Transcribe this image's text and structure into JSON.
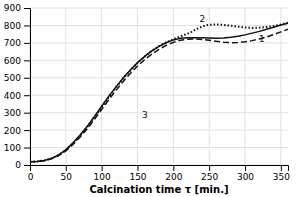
{
  "chart_data": {
    "type": "line",
    "xlabel": "Calcination time τ [min.]",
    "xlim": [
      0,
      360
    ],
    "ylim": [
      0,
      900
    ],
    "xticks": [
      0,
      50,
      100,
      150,
      200,
      250,
      300,
      350
    ],
    "yticks": [
      0,
      100,
      200,
      300,
      400,
      500,
      600,
      700,
      800,
      900
    ],
    "grid": true,
    "series": [
      {
        "color": "#111111",
        "line_style": "solid",
        "x": [
          0,
          10,
          20,
          30,
          40,
          50,
          60,
          70,
          80,
          90,
          100,
          110,
          120,
          130,
          140,
          150,
          160,
          170,
          180,
          190,
          200,
          210,
          220,
          230,
          240,
          250,
          260,
          270,
          280,
          290,
          300,
          310,
          320,
          330,
          340,
          350,
          360
        ],
        "values": [
          18,
          20,
          26,
          38,
          58,
          87,
          127,
          172,
          222,
          278,
          337,
          394,
          448,
          499,
          545,
          587,
          623,
          654,
          680,
          701,
          717,
          726,
          730,
          730,
          729,
          728,
          727,
          728,
          732,
          738,
          746,
          756,
          766,
          778,
          790,
          802,
          812
        ]
      },
      {
        "color": "#111111",
        "line_style": "dotted",
        "x": [
          0,
          10,
          20,
          30,
          40,
          50,
          60,
          70,
          80,
          90,
          100,
          110,
          120,
          130,
          140,
          150,
          160,
          170,
          180,
          190,
          200,
          210,
          220,
          225,
          230,
          235,
          240,
          245,
          250,
          260,
          270,
          280,
          290,
          300,
          310,
          320,
          330,
          340,
          350,
          360
        ],
        "values": [
          18,
          20,
          26,
          38,
          57,
          86,
          125,
          169,
          219,
          274,
          332,
          390,
          444,
          496,
          542,
          585,
          622,
          654,
          681,
          703,
          721,
          737,
          753,
          762,
          773,
          784,
          793,
          800,
          804,
          806,
          803,
          798,
          793,
          788,
          786,
          787,
          791,
          797,
          805,
          815
        ]
      },
      {
        "color": "#111111",
        "line_style": "dashed",
        "x": [
          0,
          10,
          20,
          30,
          40,
          50,
          60,
          70,
          80,
          90,
          100,
          110,
          120,
          130,
          140,
          150,
          160,
          170,
          180,
          190,
          200,
          210,
          220,
          230,
          240,
          250,
          260,
          270,
          280,
          290,
          300,
          310,
          320,
          330,
          340,
          350,
          360
        ],
        "values": [
          18,
          20,
          25,
          36,
          54,
          81,
          118,
          161,
          208,
          262,
          319,
          375,
          428,
          479,
          525,
          567,
          604,
          636,
          663,
          686,
          703,
          715,
          721,
          722,
          720,
          715,
          709,
          704,
          701,
          702,
          706,
          713,
          722,
          734,
          748,
          763,
          778
        ]
      }
    ],
    "annotations": [
      {
        "text": "2",
        "x": 235,
        "y": 810
      },
      {
        "text": "1",
        "x": 318,
        "y": 700
      },
      {
        "text": "3",
        "x": 155,
        "y": 260
      }
    ]
  }
}
